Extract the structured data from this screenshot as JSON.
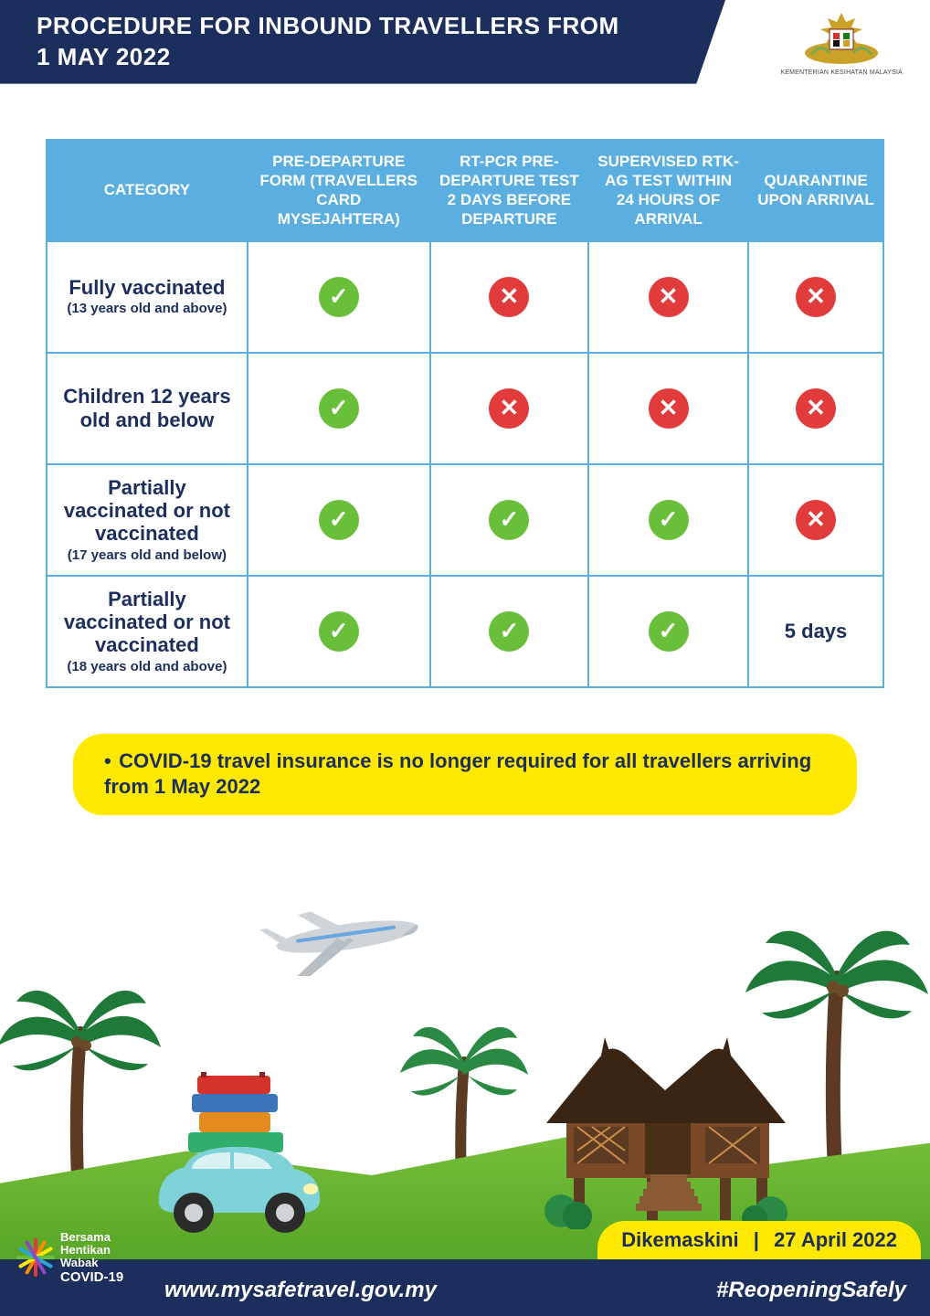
{
  "header": {
    "title_line1": "PROCEDURE FOR INBOUND TRAVELLERS FROM",
    "title_line2": "1 MAY 2022"
  },
  "crest": {
    "caption": "KEMENTERIAN KESIHATAN MALAYSIA"
  },
  "table": {
    "header_bg": "#5aaee0",
    "columns": [
      "CATEGORY",
      "PRE-DEPARTURE FORM (TRAVELLERS CARD MYSEJAHTERA)",
      "RT-PCR PRE-DEPARTURE TEST 2 DAYS BEFORE DEPARTURE",
      "SUPERVISED RTK-AG TEST WITHIN 24 HOURS OF ARRIVAL",
      "QUARANTINE UPON ARRIVAL"
    ],
    "rows": [
      {
        "cat_main": "Fully vaccinated",
        "cat_sub": "(13 years old and above)",
        "cells": [
          "yes",
          "no",
          "no",
          "no"
        ]
      },
      {
        "cat_main": "Children 12 years old and below",
        "cat_sub": "",
        "cells": [
          "yes",
          "no",
          "no",
          "no"
        ]
      },
      {
        "cat_main": "Partially vaccinated or not vaccinated",
        "cat_sub": "(17 years old and below)",
        "cells": [
          "yes",
          "yes",
          "yes",
          "no"
        ]
      },
      {
        "cat_main": "Partially vaccinated or not vaccinated",
        "cat_sub": "(18 years old and above)",
        "cells": [
          "yes",
          "yes",
          "yes",
          "5 days"
        ]
      }
    ],
    "yes_color": "#6abf3a",
    "no_color": "#e23b3b"
  },
  "note": {
    "text": "COVID-19 travel insurance is no longer required for all travellers arriving from 1 May 2022",
    "bg": "#ffe900"
  },
  "footer": {
    "campaign_line1": "Bersama",
    "campaign_line2": "Hentikan",
    "campaign_line3": "Wabak",
    "campaign_line4": "COVID-19",
    "url": "www.mysafetravel.gov.my",
    "hashtag": "#ReopeningSafely",
    "update_label": "Dikemaskini",
    "update_date": "27 April 2022",
    "bar_color": "#1c2e5c"
  },
  "colors": {
    "navy": "#1c2e5c",
    "yellow": "#ffe900"
  }
}
